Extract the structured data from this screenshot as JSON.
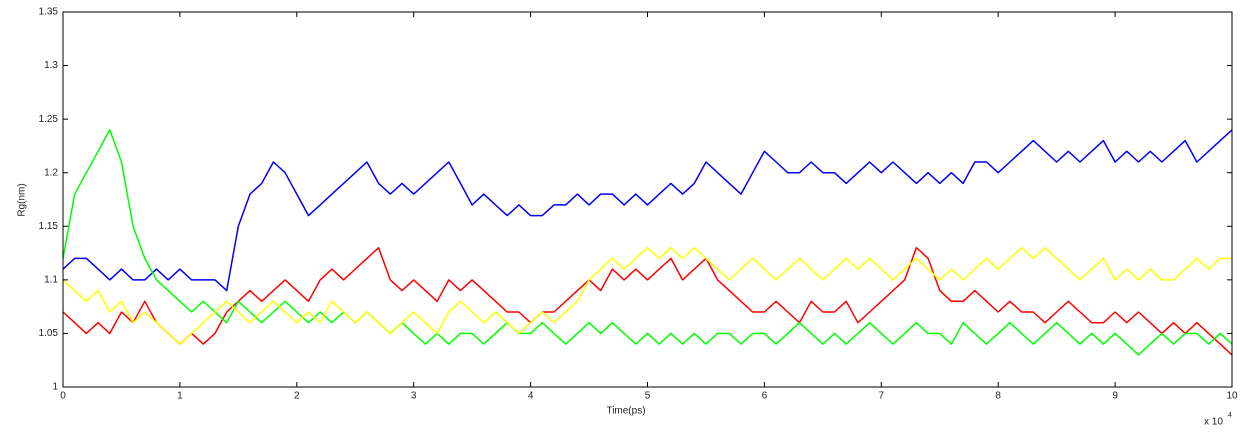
{
  "chart_data": {
    "type": "line",
    "x_label": "Time(ps)",
    "y_label": "Rg(nm)",
    "x_multiplier": "x 10",
    "x_multiplier_exponent": "4",
    "x": [
      0,
      0.1,
      0.2,
      0.3,
      0.4,
      0.5,
      0.6,
      0.7,
      0.8,
      0.9,
      1,
      1.1,
      1.2,
      1.3,
      1.4,
      1.5,
      1.6,
      1.7,
      1.8,
      1.9,
      2,
      2.1,
      2.2,
      2.3,
      2.4,
      2.5,
      2.6,
      2.7,
      2.8,
      2.9,
      3,
      3.1,
      3.2,
      3.3,
      3.4,
      3.5,
      3.6,
      3.7,
      3.8,
      3.9,
      4,
      4.1,
      4.2,
      4.3,
      4.4,
      4.5,
      4.6,
      4.7,
      4.8,
      4.9,
      5,
      5.1,
      5.2,
      5.3,
      5.4,
      5.5,
      5.6,
      5.7,
      5.8,
      5.9,
      6,
      6.1,
      6.2,
      6.3,
      6.4,
      6.5,
      6.6,
      6.7,
      6.8,
      6.9,
      7,
      7.1,
      7.2,
      7.3,
      7.4,
      7.5,
      7.6,
      7.7,
      7.8,
      7.9,
      8,
      8.1,
      8.2,
      8.3,
      8.4,
      8.5,
      8.6,
      8.7,
      8.8,
      8.9,
      9,
      9.1,
      9.2,
      9.3,
      9.4,
      9.5,
      9.6,
      9.7,
      9.8,
      9.9,
      10
    ],
    "series": [
      {
        "color": "#0000ff",
        "values": [
          1.11,
          1.12,
          1.12,
          1.11,
          1.1,
          1.11,
          1.1,
          1.1,
          1.11,
          1.1,
          1.11,
          1.1,
          1.1,
          1.1,
          1.09,
          1.15,
          1.18,
          1.19,
          1.21,
          1.2,
          1.18,
          1.16,
          1.17,
          1.18,
          1.19,
          1.2,
          1.21,
          1.19,
          1.18,
          1.19,
          1.18,
          1.19,
          1.2,
          1.21,
          1.19,
          1.17,
          1.18,
          1.17,
          1.16,
          1.17,
          1.16,
          1.16,
          1.17,
          1.17,
          1.18,
          1.17,
          1.18,
          1.18,
          1.17,
          1.18,
          1.17,
          1.18,
          1.19,
          1.18,
          1.19,
          1.21,
          1.2,
          1.19,
          1.18,
          1.2,
          1.22,
          1.21,
          1.2,
          1.2,
          1.21,
          1.2,
          1.2,
          1.19,
          1.2,
          1.21,
          1.2,
          1.21,
          1.2,
          1.19,
          1.2,
          1.19,
          1.2,
          1.19,
          1.21,
          1.21,
          1.2,
          1.21,
          1.22,
          1.23,
          1.22,
          1.21,
          1.22,
          1.21,
          1.22,
          1.23,
          1.21,
          1.22,
          1.21,
          1.22,
          1.21,
          1.22,
          1.23,
          1.21,
          1.22,
          1.23,
          1.24
        ]
      },
      {
        "color": "#ff0000",
        "values": [
          1.07,
          1.06,
          1.05,
          1.06,
          1.05,
          1.07,
          1.06,
          1.08,
          1.06,
          1.05,
          1.04,
          1.05,
          1.04,
          1.05,
          1.07,
          1.08,
          1.09,
          1.08,
          1.09,
          1.1,
          1.09,
          1.08,
          1.1,
          1.11,
          1.1,
          1.11,
          1.12,
          1.13,
          1.1,
          1.09,
          1.1,
          1.09,
          1.08,
          1.1,
          1.09,
          1.1,
          1.09,
          1.08,
          1.07,
          1.07,
          1.06,
          1.07,
          1.07,
          1.08,
          1.09,
          1.1,
          1.09,
          1.11,
          1.1,
          1.11,
          1.1,
          1.11,
          1.12,
          1.1,
          1.11,
          1.12,
          1.1,
          1.09,
          1.08,
          1.07,
          1.07,
          1.08,
          1.07,
          1.06,
          1.08,
          1.07,
          1.07,
          1.08,
          1.06,
          1.07,
          1.08,
          1.09,
          1.1,
          1.13,
          1.12,
          1.09,
          1.08,
          1.08,
          1.09,
          1.08,
          1.07,
          1.08,
          1.07,
          1.07,
          1.06,
          1.07,
          1.08,
          1.07,
          1.06,
          1.06,
          1.07,
          1.06,
          1.07,
          1.06,
          1.05,
          1.06,
          1.05,
          1.06,
          1.05,
          1.04,
          1.03
        ]
      },
      {
        "color": "#00ff00",
        "values": [
          1.12,
          1.18,
          1.2,
          1.22,
          1.24,
          1.21,
          1.15,
          1.12,
          1.1,
          1.09,
          1.08,
          1.07,
          1.08,
          1.07,
          1.06,
          1.08,
          1.07,
          1.06,
          1.07,
          1.08,
          1.07,
          1.06,
          1.07,
          1.06,
          1.07,
          1.06,
          1.07,
          1.06,
          1.05,
          1.06,
          1.05,
          1.04,
          1.05,
          1.04,
          1.05,
          1.05,
          1.04,
          1.05,
          1.06,
          1.05,
          1.05,
          1.06,
          1.05,
          1.04,
          1.05,
          1.06,
          1.05,
          1.06,
          1.05,
          1.04,
          1.05,
          1.04,
          1.05,
          1.04,
          1.05,
          1.04,
          1.05,
          1.05,
          1.04,
          1.05,
          1.05,
          1.04,
          1.05,
          1.06,
          1.05,
          1.04,
          1.05,
          1.04,
          1.05,
          1.06,
          1.05,
          1.04,
          1.05,
          1.06,
          1.05,
          1.05,
          1.04,
          1.06,
          1.05,
          1.04,
          1.05,
          1.06,
          1.05,
          1.04,
          1.05,
          1.06,
          1.05,
          1.04,
          1.05,
          1.04,
          1.05,
          1.04,
          1.03,
          1.04,
          1.05,
          1.04,
          1.05,
          1.05,
          1.04,
          1.05,
          1.04
        ]
      },
      {
        "color": "#ffff00",
        "values": [
          1.1,
          1.09,
          1.08,
          1.09,
          1.07,
          1.08,
          1.06,
          1.07,
          1.06,
          1.05,
          1.04,
          1.05,
          1.06,
          1.07,
          1.08,
          1.07,
          1.06,
          1.07,
          1.08,
          1.07,
          1.06,
          1.07,
          1.06,
          1.08,
          1.07,
          1.06,
          1.07,
          1.06,
          1.05,
          1.06,
          1.07,
          1.06,
          1.05,
          1.07,
          1.08,
          1.07,
          1.06,
          1.07,
          1.06,
          1.05,
          1.06,
          1.07,
          1.06,
          1.07,
          1.08,
          1.1,
          1.11,
          1.12,
          1.11,
          1.12,
          1.13,
          1.12,
          1.13,
          1.12,
          1.13,
          1.12,
          1.11,
          1.1,
          1.11,
          1.12,
          1.11,
          1.1,
          1.11,
          1.12,
          1.11,
          1.1,
          1.11,
          1.12,
          1.11,
          1.12,
          1.11,
          1.1,
          1.11,
          1.12,
          1.11,
          1.1,
          1.11,
          1.1,
          1.11,
          1.12,
          1.11,
          1.12,
          1.13,
          1.12,
          1.13,
          1.12,
          1.11,
          1.1,
          1.11,
          1.12,
          1.1,
          1.11,
          1.1,
          1.11,
          1.1,
          1.1,
          1.11,
          1.12,
          1.11,
          1.12,
          1.12
        ]
      }
    ],
    "xlim": [
      0,
      10
    ],
    "xticks": [
      0,
      1,
      2,
      3,
      4,
      5,
      6,
      7,
      8,
      9,
      10
    ],
    "ylim": [
      1,
      1.35
    ],
    "yticks": [
      1,
      1.05,
      1.1,
      1.15,
      1.2,
      1.25,
      1.3,
      1.35
    ]
  }
}
